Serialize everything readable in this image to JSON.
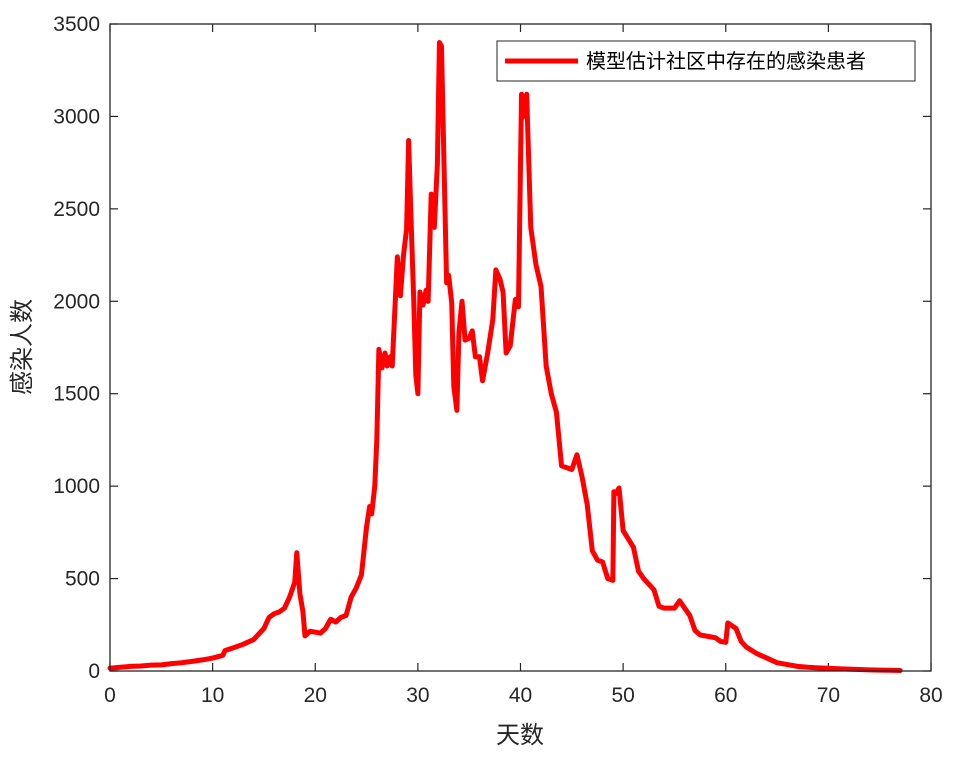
{
  "chart_data": {
    "type": "line",
    "title": "",
    "xlabel": "天数",
    "ylabel": "感染人数",
    "xlim": [
      0,
      80
    ],
    "ylim": [
      0,
      3500
    ],
    "xticks": [
      0,
      10,
      20,
      30,
      40,
      50,
      60,
      70,
      80
    ],
    "yticks": [
      0,
      500,
      1000,
      1500,
      2000,
      2500,
      3000,
      3500
    ],
    "legend_position": "top-right",
    "grid": false,
    "series": [
      {
        "name": "模型估计社区中存在的感染患者",
        "color": "#ff0000",
        "points": [
          [
            0,
            15
          ],
          [
            1,
            20
          ],
          [
            2,
            25
          ],
          [
            3,
            27
          ],
          [
            4,
            32
          ],
          [
            5,
            33
          ],
          [
            6,
            40
          ],
          [
            7,
            45
          ],
          [
            8,
            52
          ],
          [
            9,
            60
          ],
          [
            10,
            70
          ],
          [
            11,
            85
          ],
          [
            11.2,
            110
          ],
          [
            12,
            125
          ],
          [
            13,
            145
          ],
          [
            14,
            170
          ],
          [
            15,
            230
          ],
          [
            15.5,
            290
          ],
          [
            16,
            310
          ],
          [
            16.5,
            320
          ],
          [
            17,
            340
          ],
          [
            17.5,
            400
          ],
          [
            18,
            480
          ],
          [
            18.2,
            640
          ],
          [
            18.5,
            420
          ],
          [
            18.8,
            320
          ],
          [
            19,
            190
          ],
          [
            19.5,
            215
          ],
          [
            20,
            210
          ],
          [
            20.5,
            205
          ],
          [
            21,
            230
          ],
          [
            21.5,
            280
          ],
          [
            22,
            265
          ],
          [
            22.5,
            290
          ],
          [
            23,
            300
          ],
          [
            23.5,
            400
          ],
          [
            24,
            450
          ],
          [
            24.5,
            520
          ],
          [
            25,
            780
          ],
          [
            25.3,
            890
          ],
          [
            25.5,
            850
          ],
          [
            25.8,
            1000
          ],
          [
            26,
            1250
          ],
          [
            26.2,
            1740
          ],
          [
            26.5,
            1640
          ],
          [
            26.8,
            1720
          ],
          [
            27,
            1650
          ],
          [
            27.3,
            1700
          ],
          [
            27.5,
            1650
          ],
          [
            28,
            2240
          ],
          [
            28.3,
            2030
          ],
          [
            28.6,
            2250
          ],
          [
            28.9,
            2390
          ],
          [
            29.1,
            2870
          ],
          [
            29.3,
            2500
          ],
          [
            29.6,
            2000
          ],
          [
            29.8,
            1600
          ],
          [
            30,
            1500
          ],
          [
            30.2,
            2050
          ],
          [
            30.5,
            1980
          ],
          [
            30.8,
            2060
          ],
          [
            31,
            2000
          ],
          [
            31.3,
            2580
          ],
          [
            31.6,
            2400
          ],
          [
            31.9,
            2740
          ],
          [
            32.1,
            3400
          ],
          [
            32.3,
            3380
          ],
          [
            32.5,
            2860
          ],
          [
            32.8,
            2100
          ],
          [
            33,
            2140
          ],
          [
            33.3,
            1990
          ],
          [
            33.5,
            1540
          ],
          [
            33.8,
            1410
          ],
          [
            34,
            1830
          ],
          [
            34.3,
            2000
          ],
          [
            34.6,
            1790
          ],
          [
            35,
            1800
          ],
          [
            35.3,
            1840
          ],
          [
            35.6,
            1700
          ],
          [
            36,
            1700
          ],
          [
            36.3,
            1570
          ],
          [
            36.8,
            1720
          ],
          [
            37.3,
            1900
          ],
          [
            37.6,
            2170
          ],
          [
            38,
            2120
          ],
          [
            38.3,
            2050
          ],
          [
            38.6,
            1720
          ],
          [
            39,
            1760
          ],
          [
            39.5,
            2010
          ],
          [
            39.8,
            1970
          ],
          [
            40.1,
            3120
          ],
          [
            40.3,
            3000
          ],
          [
            40.6,
            3120
          ],
          [
            41,
            2400
          ],
          [
            41.5,
            2200
          ],
          [
            42,
            2080
          ],
          [
            42.5,
            1650
          ],
          [
            43,
            1500
          ],
          [
            43.5,
            1400
          ],
          [
            44,
            1110
          ],
          [
            45,
            1090
          ],
          [
            45.5,
            1170
          ],
          [
            46,
            1050
          ],
          [
            46.5,
            900
          ],
          [
            47,
            650
          ],
          [
            47.5,
            600
          ],
          [
            48,
            590
          ],
          [
            48.5,
            500
          ],
          [
            49,
            490
          ],
          [
            49.1,
            970
          ],
          [
            49.3,
            960
          ],
          [
            49.6,
            990
          ],
          [
            50,
            760
          ],
          [
            51,
            670
          ],
          [
            51.5,
            540
          ],
          [
            52,
            500
          ],
          [
            53,
            440
          ],
          [
            53.5,
            350
          ],
          [
            54,
            340
          ],
          [
            55,
            340
          ],
          [
            55.5,
            380
          ],
          [
            56,
            340
          ],
          [
            56.5,
            300
          ],
          [
            57,
            220
          ],
          [
            57.5,
            195
          ],
          [
            58,
            190
          ],
          [
            59,
            180
          ],
          [
            59.5,
            160
          ],
          [
            60,
            155
          ],
          [
            60.2,
            260
          ],
          [
            61,
            230
          ],
          [
            61.5,
            160
          ],
          [
            62,
            130
          ],
          [
            63,
            95
          ],
          [
            64,
            70
          ],
          [
            65,
            45
          ],
          [
            66,
            35
          ],
          [
            67,
            25
          ],
          [
            68,
            20
          ],
          [
            69,
            17
          ],
          [
            70,
            15
          ],
          [
            71,
            12
          ],
          [
            72,
            10
          ],
          [
            73,
            8
          ],
          [
            74,
            6
          ],
          [
            75,
            5
          ],
          [
            76,
            4
          ],
          [
            77,
            3
          ]
        ]
      }
    ]
  }
}
